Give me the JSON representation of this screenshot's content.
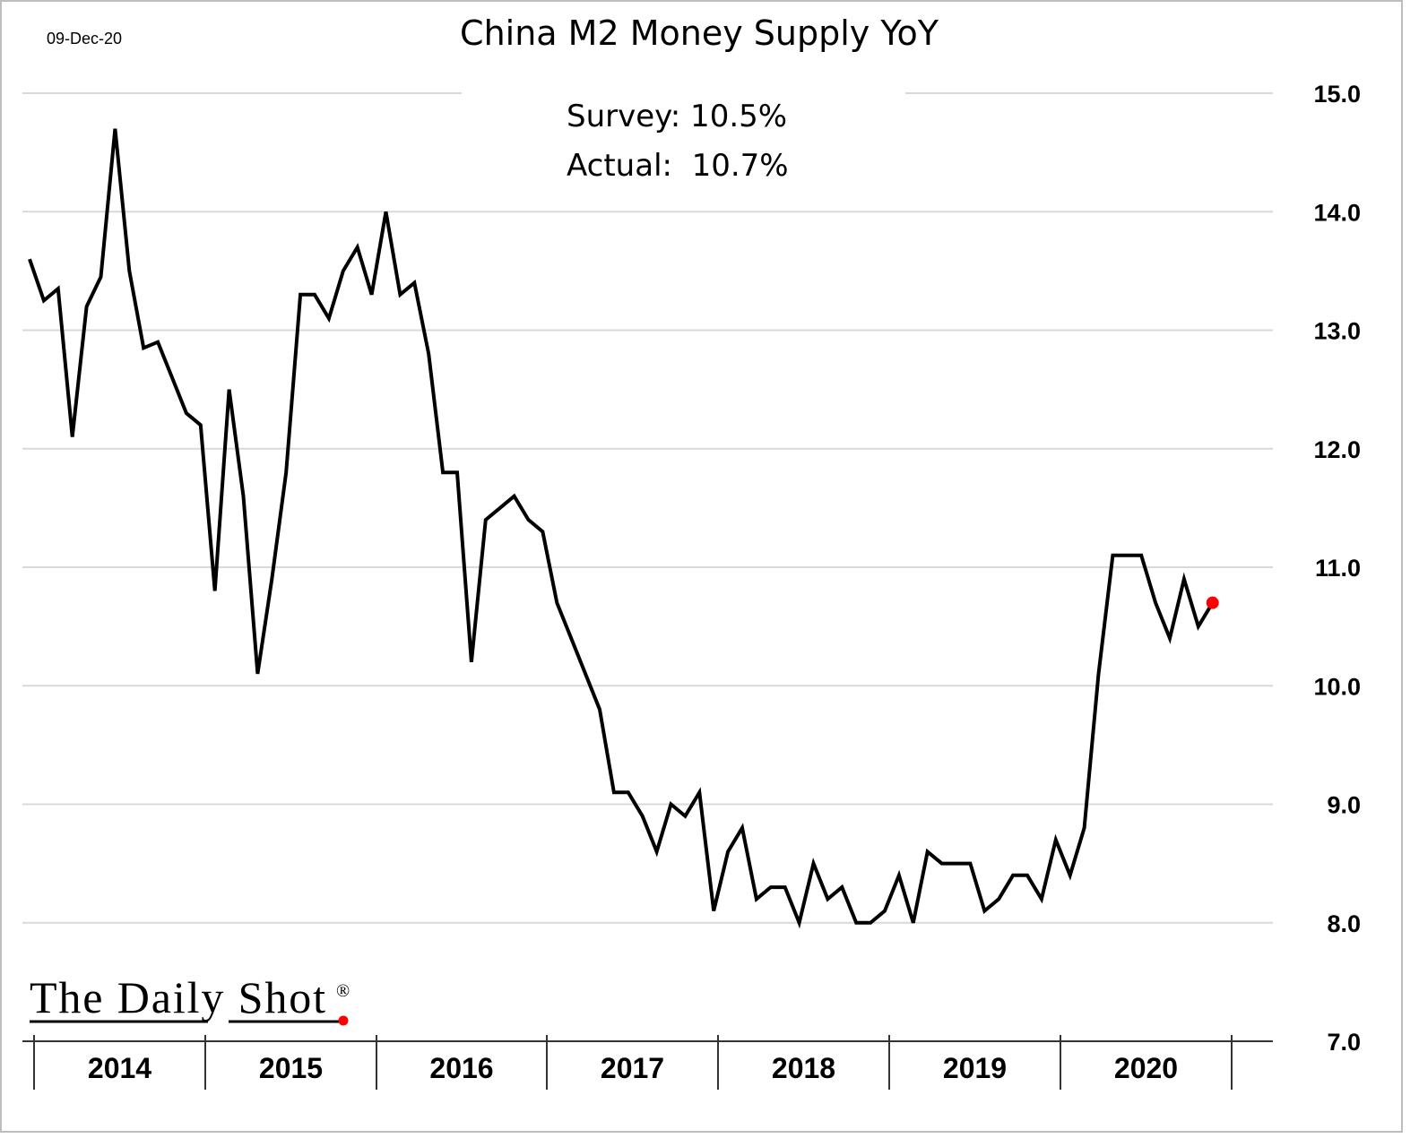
{
  "chart_data": {
    "type": "line",
    "title": "China M2 Money Supply YoY",
    "date_label": "09-Dec-20",
    "annotations": {
      "survey": "Survey: 10.5%",
      "actual": "Actual:  10.7%"
    },
    "ylim": [
      7.0,
      15.0
    ],
    "yticks": [
      "7.0",
      "8.0",
      "9.0",
      "10.0",
      "11.0",
      "12.0",
      "13.0",
      "14.0",
      "15.0"
    ],
    "y_axis_side": "right",
    "grid": true,
    "xtick_labels": [
      "2014",
      "2015",
      "2016",
      "2017",
      "2018",
      "2019",
      "2020"
    ],
    "x": [
      "2013-12",
      "2014-01",
      "2014-02",
      "2014-03",
      "2014-04",
      "2014-05",
      "2014-06",
      "2014-07",
      "2014-08",
      "2014-09",
      "2014-10",
      "2014-11",
      "2014-12",
      "2015-01",
      "2015-02",
      "2015-03",
      "2015-04",
      "2015-05",
      "2015-06",
      "2015-07",
      "2015-08",
      "2015-09",
      "2015-10",
      "2015-11",
      "2015-12",
      "2016-01",
      "2016-02",
      "2016-03",
      "2016-04",
      "2016-05",
      "2016-06",
      "2016-07",
      "2016-08",
      "2016-09",
      "2016-10",
      "2016-11",
      "2016-12",
      "2017-01",
      "2017-02",
      "2017-03",
      "2017-04",
      "2017-05",
      "2017-06",
      "2017-07",
      "2017-08",
      "2017-09",
      "2017-10",
      "2017-11",
      "2017-12",
      "2018-01",
      "2018-02",
      "2018-03",
      "2018-04",
      "2018-05",
      "2018-06",
      "2018-07",
      "2018-08",
      "2018-09",
      "2018-10",
      "2018-11",
      "2018-12",
      "2019-01",
      "2019-02",
      "2019-03",
      "2019-04",
      "2019-05",
      "2019-06",
      "2019-07",
      "2019-08",
      "2019-09",
      "2019-10",
      "2019-11",
      "2019-12",
      "2020-01",
      "2020-02",
      "2020-03",
      "2020-04",
      "2020-05",
      "2020-06",
      "2020-07",
      "2020-08",
      "2020-09",
      "2020-10",
      "2020-11"
    ],
    "values": [
      13.6,
      13.25,
      13.35,
      12.1,
      13.2,
      13.45,
      14.7,
      13.5,
      12.85,
      12.9,
      12.6,
      12.3,
      12.2,
      10.8,
      12.5,
      11.6,
      10.1,
      10.9,
      11.8,
      13.3,
      13.3,
      13.1,
      13.5,
      13.7,
      13.3,
      14.0,
      13.3,
      13.4,
      12.8,
      11.8,
      11.8,
      10.2,
      11.4,
      11.5,
      11.6,
      11.4,
      11.3,
      10.7,
      10.4,
      10.1,
      9.8,
      9.1,
      9.1,
      8.9,
      8.6,
      9.0,
      8.9,
      9.1,
      8.1,
      8.6,
      8.8,
      8.2,
      8.3,
      8.3,
      8.0,
      8.5,
      8.2,
      8.3,
      8.0,
      8.0,
      8.1,
      8.4,
      8.0,
      8.6,
      8.5,
      8.5,
      8.5,
      8.1,
      8.2,
      8.4,
      8.4,
      8.2,
      8.7,
      8.4,
      8.8,
      10.1,
      11.1,
      11.1,
      11.1,
      10.7,
      10.4,
      10.9,
      10.5,
      10.7
    ],
    "colors": {
      "line": "#000000",
      "last_point": "#ff0000",
      "grid": "#d9d9d9"
    }
  },
  "logo": {
    "text": "The Daily Shot",
    "mark": "®"
  }
}
